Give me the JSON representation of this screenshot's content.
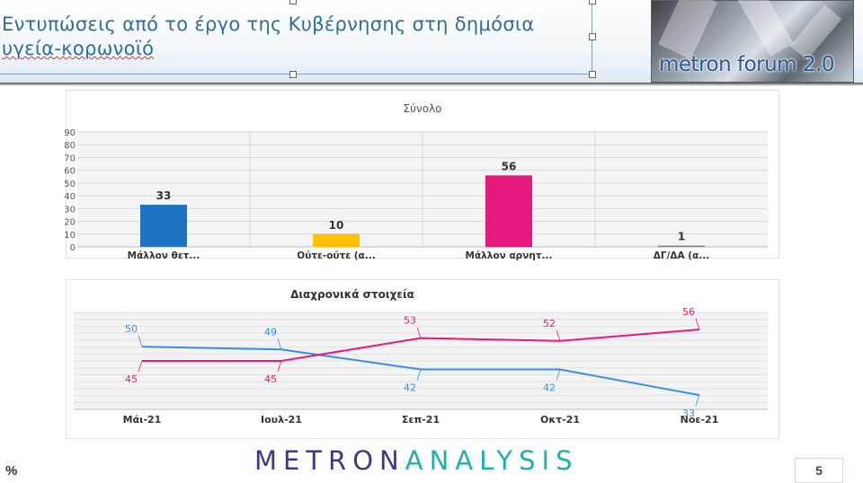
{
  "slide": {
    "title_line1": "Εντυπώσεις από το έργο της Κυβέρνησης στη δημόσια",
    "title_line2": "υγεία-κορωνοϊό",
    "logo_text": "metron forum 2.0",
    "footer_brand_a": "METRON",
    "footer_brand_b": "ANALYSIS",
    "unit": "%",
    "page_number": "5"
  },
  "chart_data": [
    {
      "type": "bar",
      "title": "Σύνολο",
      "categories": [
        "Μάλλον θετ...",
        "Ούτε-ούτε (α...",
        "Μάλλον αρνητ...",
        "ΔΓ/ΔΑ (α..."
      ],
      "values": [
        33,
        10,
        56,
        1
      ],
      "colors": [
        "#1f73c4",
        "#ffc000",
        "#e6197c",
        "#7f7f7f"
      ],
      "ylim": [
        0,
        90
      ],
      "yticks": [
        0,
        10,
        20,
        30,
        40,
        50,
        60,
        70,
        80,
        90
      ],
      "grid": true
    },
    {
      "type": "line",
      "title": "Διαχρονικά στοιχεία",
      "categories": [
        "Μάι-21",
        "Ιουλ-21",
        "Σεπ-21",
        "Οκτ-21",
        "Νοε-21"
      ],
      "series": [
        {
          "values": [
            50,
            49,
            42,
            42,
            33
          ],
          "color": "#3a8ee6"
        },
        {
          "values": [
            45,
            45,
            53,
            52,
            56
          ],
          "color": "#e6197c"
        }
      ],
      "grid": true
    }
  ]
}
